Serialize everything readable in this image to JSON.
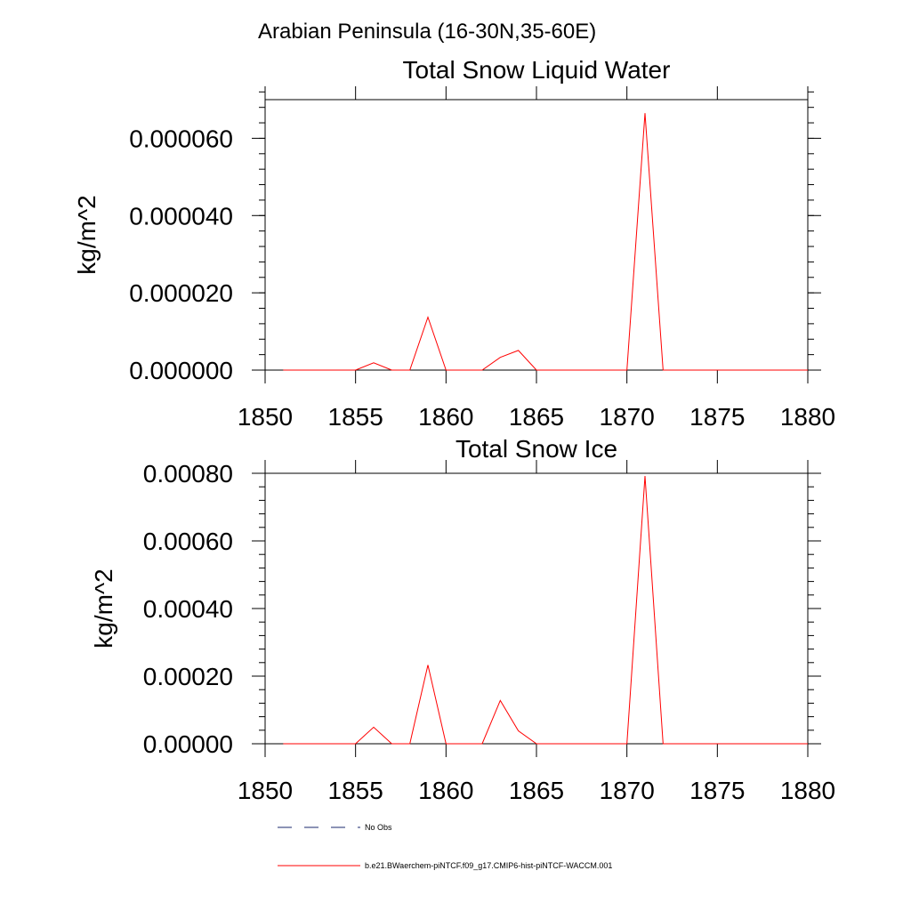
{
  "figure": {
    "suptitle": "Arabian Peninsula (16-30N,35-60E)"
  },
  "colors": {
    "series": "#ff0000",
    "axes": "#000000",
    "no_obs": "#1a2a6c"
  },
  "legend": {
    "placement": "bottom",
    "entries": [
      {
        "label": "No Obs",
        "style": "dashed",
        "color": "#1a2a6c"
      },
      {
        "label": "b.e21.BWaerchem-piNTCF.f09_g17.CMIP6-hist-piNTCF-WACCM.001",
        "style": "solid",
        "color": "#ff0000"
      }
    ]
  },
  "chart_data": [
    {
      "type": "line",
      "title": "Total Snow Liquid Water",
      "xlabel": "",
      "ylabel": "kg/m^2",
      "xlim": [
        1850,
        1880
      ],
      "ylim": [
        0,
        7e-05
      ],
      "xticks": [
        1850,
        1855,
        1860,
        1865,
        1870,
        1875,
        1880
      ],
      "xtick_labels": [
        "1850",
        "1855",
        "1860",
        "1865",
        "1870",
        "1875",
        "1880"
      ],
      "yticks": [
        0,
        2e-05,
        4e-05,
        6e-05
      ],
      "ytick_labels": [
        "0.000000",
        "0.000020",
        "0.000040",
        "0.000060"
      ],
      "y_minor_step": 4e-06,
      "grid": false,
      "series": [
        {
          "name": "b.e21.BWaerchem-piNTCF.f09_g17.CMIP6-hist-piNTCF-WACCM.001",
          "color": "#ff0000",
          "x": [
            1851,
            1852,
            1853,
            1854,
            1855,
            1856,
            1857,
            1858,
            1859,
            1860,
            1861,
            1862,
            1863,
            1864,
            1865,
            1866,
            1867,
            1868,
            1869,
            1870,
            1871,
            1872,
            1873,
            1874,
            1875,
            1876,
            1877,
            1878,
            1879,
            1880
          ],
          "values": [
            0,
            0,
            0,
            0,
            0,
            1.9e-06,
            0,
            0,
            1.37e-05,
            0,
            0,
            0,
            3.3e-06,
            5.1e-06,
            0,
            0,
            0,
            0,
            0,
            0,
            6.65e-05,
            0,
            0,
            0,
            0,
            0,
            0,
            0,
            0,
            0
          ]
        }
      ]
    },
    {
      "type": "line",
      "title": "Total Snow Ice",
      "xlabel": "",
      "ylabel": "kg/m^2",
      "xlim": [
        1850,
        1880
      ],
      "ylim": [
        0,
        0.0008
      ],
      "xticks": [
        1850,
        1855,
        1860,
        1865,
        1870,
        1875,
        1880
      ],
      "xtick_labels": [
        "1850",
        "1855",
        "1860",
        "1865",
        "1870",
        "1875",
        "1880"
      ],
      "yticks": [
        0,
        0.0002,
        0.0004,
        0.0006,
        0.0008
      ],
      "ytick_labels": [
        "0.00000",
        "0.00020",
        "0.00040",
        "0.00060",
        "0.00080"
      ],
      "y_minor_step": 4e-05,
      "grid": false,
      "series": [
        {
          "name": "b.e21.BWaerchem-piNTCF.f09_g17.CMIP6-hist-piNTCF-WACCM.001",
          "color": "#ff0000",
          "x": [
            1851,
            1852,
            1853,
            1854,
            1855,
            1856,
            1857,
            1858,
            1859,
            1860,
            1861,
            1862,
            1863,
            1864,
            1865,
            1866,
            1867,
            1868,
            1869,
            1870,
            1871,
            1872,
            1873,
            1874,
            1875,
            1876,
            1877,
            1878,
            1879,
            1880
          ],
          "values": [
            0,
            0,
            0,
            0,
            0,
            4.9e-05,
            0,
            0,
            0.000233,
            0,
            0,
            0,
            0.000128,
            3.8e-05,
            0,
            0,
            0,
            0,
            0,
            0,
            0.000792,
            0,
            0,
            0,
            0,
            0,
            0,
            0,
            0,
            0
          ]
        }
      ]
    }
  ]
}
